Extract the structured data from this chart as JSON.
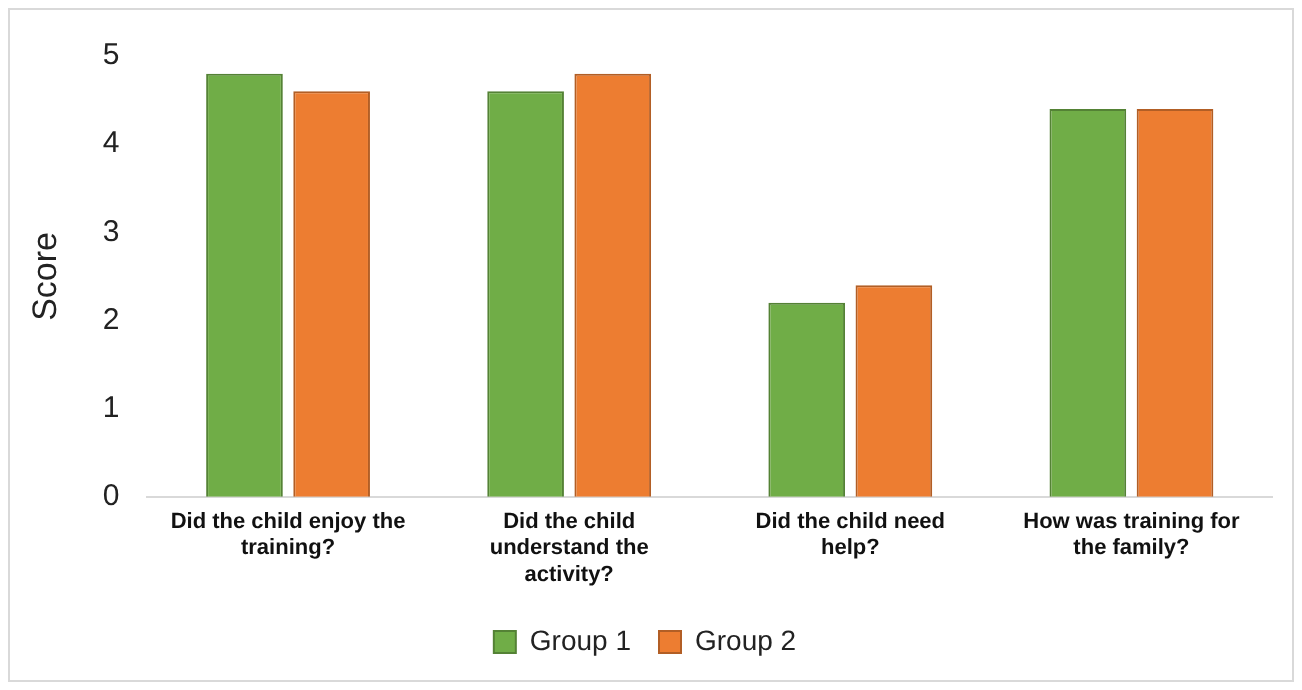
{
  "chart_data": {
    "type": "bar",
    "ylabel": "Score",
    "categories": [
      "Did the child enjoy the training?",
      "Did the child understand the activity?",
      "Did the child need help?",
      "How was training for the family?"
    ],
    "series": [
      {
        "name": "Group 1",
        "color": "#70ad47",
        "values": [
          4.8,
          4.6,
          2.2,
          4.4
        ]
      },
      {
        "name": "Group 2",
        "color": "#ed7d31",
        "values": [
          4.6,
          4.8,
          2.4,
          4.4
        ]
      }
    ],
    "ylim": [
      0,
      5
    ],
    "yticks": [
      0,
      1,
      2,
      3,
      4,
      5
    ],
    "grid": false,
    "legend": "bottom"
  }
}
